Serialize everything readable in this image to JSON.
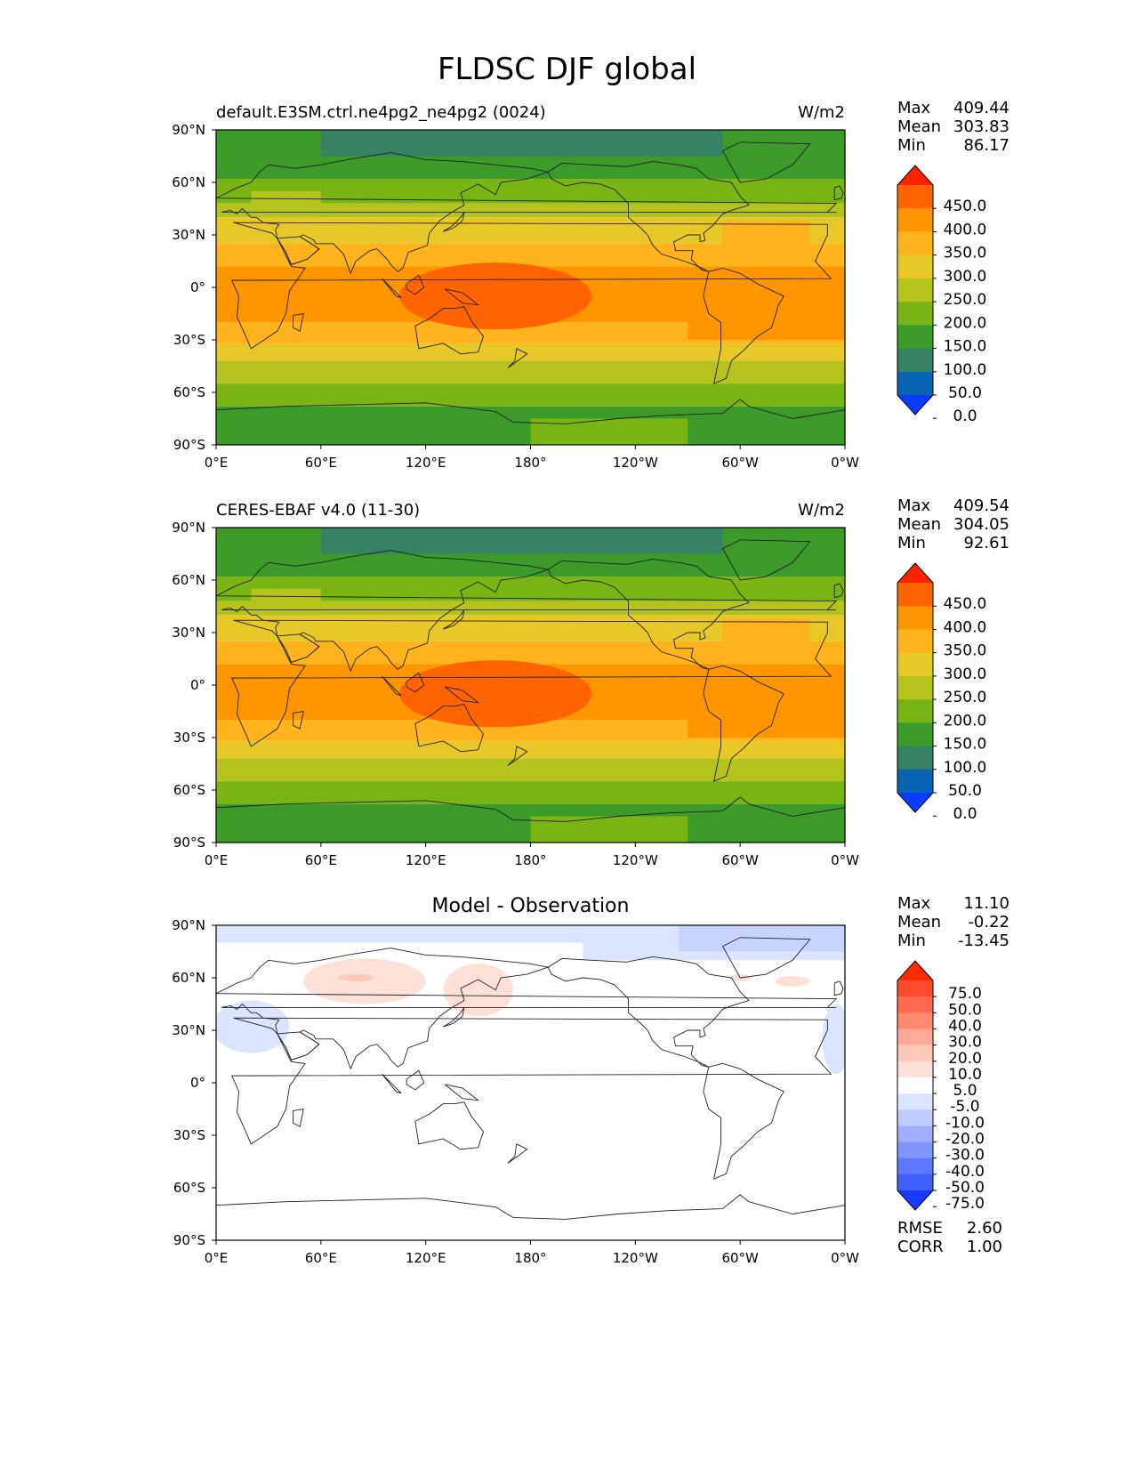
{
  "figure_title": "FLDSC DJF global",
  "panels": [
    {
      "title_left": "default.E3SM.ctrl.ne4pg2_ne4pg2 (0024)",
      "title_right": "W/m2",
      "title_center": "",
      "stats": [
        {
          "label": "Max",
          "value": "409.44"
        },
        {
          "label": "Mean",
          "value": "303.83"
        },
        {
          "label": "Min",
          "value": "86.17"
        }
      ],
      "extra_stats": []
    },
    {
      "title_left": "CERES-EBAF v4.0 (11-30)",
      "title_right": "W/m2",
      "title_center": "",
      "stats": [
        {
          "label": "Max",
          "value": "409.54"
        },
        {
          "label": "Mean",
          "value": "304.05"
        },
        {
          "label": "Min",
          "value": "92.61"
        }
      ],
      "extra_stats": []
    },
    {
      "title_left": "",
      "title_right": "",
      "title_center": "Model - Observation",
      "stats": [
        {
          "label": "Max",
          "value": "11.10"
        },
        {
          "label": "Mean",
          "value": "-0.22"
        },
        {
          "label": "Min",
          "value": "-13.45"
        }
      ],
      "extra_stats": [
        {
          "label": "RMSE",
          "value": "2.60"
        },
        {
          "label": "CORR",
          "value": "1.00"
        }
      ]
    }
  ],
  "x_ticks": [
    "0°E",
    "60°E",
    "120°E",
    "180°",
    "120°W",
    "60°W",
    "0°W"
  ],
  "y_ticks": [
    "90°N",
    "60°N",
    "30°N",
    "0°",
    "30°S",
    "60°S",
    "90°S"
  ],
  "colorbar_field": {
    "labels": [
      "450.0",
      "400.0",
      "350.0",
      "300.0",
      "250.0",
      "200.0",
      "150.0",
      "100.0",
      "50.0",
      "0.0"
    ],
    "colors": [
      "#ff2200",
      "#ff6400",
      "#ff9600",
      "#ffb41e",
      "#e6c828",
      "#b4c31e",
      "#78b414",
      "#3c9b28",
      "#378264",
      "#0a64b4",
      "#0a3cff"
    ]
  },
  "colorbar_diff": {
    "labels": [
      "75.0",
      "50.0",
      "40.0",
      "30.0",
      "20.0",
      "10.0",
      "5.0",
      "-5.0",
      "-10.0",
      "-20.0",
      "-30.0",
      "-40.0",
      "-50.0",
      "-75.0"
    ],
    "colors": [
      "#ff2a00",
      "#ff4a30",
      "#ff6a50",
      "#ff8a70",
      "#ffaa98",
      "#ffc8b8",
      "#ffe0d8",
      "#ffffff",
      "#dde4ff",
      "#c0ccff",
      "#a0b0ff",
      "#8094ff",
      "#6078ff",
      "#4060ff",
      "#1a3aff"
    ]
  },
  "map_colors": {
    "c0": "#0a3cff",
    "c50": "#0a64b4",
    "c100": "#378264",
    "c150": "#3c9b28",
    "c200": "#78b414",
    "c250": "#b4c31e",
    "c300": "#e6c828",
    "c350": "#ffb41e",
    "c400": "#ff9600",
    "c450": "#ff6400",
    "diff_pos": "#ffe0d8",
    "diff_pos2": "#ffc8b8",
    "diff_neg": "#dde4ff",
    "diff_neg2": "#c8d4ff",
    "coast": "#222222"
  }
}
